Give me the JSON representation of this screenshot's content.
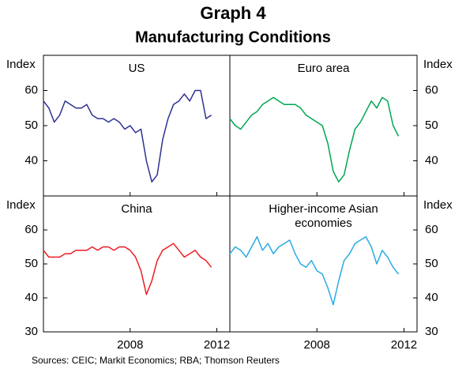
{
  "title": "Graph 4",
  "subtitle": "Manufacturing Conditions",
  "source": "Sources: CEIC; Markit Economics; RBA; Thomson Reuters",
  "chart_data": [
    {
      "type": "line",
      "title": "US",
      "ylabel": "Index",
      "color": "#2e3192",
      "x": [
        2004,
        2004.25,
        2004.5,
        2004.75,
        2005,
        2005.25,
        2005.5,
        2005.75,
        2006,
        2006.25,
        2006.5,
        2006.75,
        2007,
        2007.25,
        2007.5,
        2007.75,
        2008,
        2008.25,
        2008.5,
        2008.75,
        2009,
        2009.25,
        2009.5,
        2009.75,
        2010,
        2010.25,
        2010.5,
        2010.75,
        2011,
        2011.25,
        2011.5,
        2011.75
      ],
      "values": [
        57,
        55,
        51,
        53,
        57,
        56,
        55,
        55,
        56,
        53,
        52,
        52,
        51,
        52,
        51,
        49,
        50,
        48,
        49,
        40,
        34,
        36,
        46,
        52,
        56,
        57,
        59,
        57,
        60,
        60,
        52,
        53
      ],
      "xlim": [
        2004,
        2012.6
      ],
      "xticks": [
        2008,
        2012
      ],
      "ylim": [
        30,
        70
      ],
      "yticks": [
        40,
        50,
        60
      ]
    },
    {
      "type": "line",
      "title": "Euro area",
      "ylabel": "Index",
      "color": "#00a651",
      "x": [
        2004,
        2004.25,
        2004.5,
        2004.75,
        2005,
        2005.25,
        2005.5,
        2005.75,
        2006,
        2006.25,
        2006.5,
        2006.75,
        2007,
        2007.25,
        2007.5,
        2007.75,
        2008,
        2008.25,
        2008.5,
        2008.75,
        2009,
        2009.25,
        2009.5,
        2009.75,
        2010,
        2010.25,
        2010.5,
        2010.75,
        2011,
        2011.25,
        2011.5,
        2011.75
      ],
      "values": [
        52,
        50,
        49,
        51,
        53,
        54,
        56,
        57,
        58,
        57,
        56,
        56,
        56,
        55,
        53,
        52,
        51,
        50,
        45,
        37,
        34,
        36,
        43,
        49,
        51,
        54,
        57,
        55,
        58,
        57,
        50,
        47
      ],
      "xlim": [
        2004,
        2012.6
      ],
      "xticks": [
        2008,
        2012
      ],
      "ylim": [
        30,
        70
      ],
      "yticks": [
        40,
        50,
        60
      ]
    },
    {
      "type": "line",
      "title": "China",
      "ylabel": "Index",
      "color": "#ed1c24",
      "x": [
        2004,
        2004.25,
        2004.5,
        2004.75,
        2005,
        2005.25,
        2005.5,
        2005.75,
        2006,
        2006.25,
        2006.5,
        2006.75,
        2007,
        2007.25,
        2007.5,
        2007.75,
        2008,
        2008.25,
        2008.5,
        2008.75,
        2009,
        2009.25,
        2009.5,
        2009.75,
        2010,
        2010.25,
        2010.5,
        2010.75,
        2011,
        2011.25,
        2011.5,
        2011.75
      ],
      "values": [
        54,
        52,
        52,
        52,
        53,
        53,
        54,
        54,
        54,
        55,
        54,
        55,
        55,
        54,
        55,
        55,
        54,
        52,
        48,
        41,
        45,
        51,
        54,
        55,
        56,
        54,
        52,
        53,
        54,
        52,
        51,
        49
      ],
      "xlim": [
        2004,
        2012.6
      ],
      "xticks": [
        2008,
        2012
      ],
      "ylim": [
        30,
        70
      ],
      "yticks": [
        30,
        40,
        50,
        60
      ]
    },
    {
      "type": "line",
      "title": [
        "Higher-income Asian",
        "economies"
      ],
      "ylabel": "Index",
      "color": "#29abe2",
      "x": [
        2004,
        2004.25,
        2004.5,
        2004.75,
        2005,
        2005.25,
        2005.5,
        2005.75,
        2006,
        2006.25,
        2006.5,
        2006.75,
        2007,
        2007.25,
        2007.5,
        2007.75,
        2008,
        2008.25,
        2008.5,
        2008.75,
        2009,
        2009.25,
        2009.5,
        2009.75,
        2010,
        2010.25,
        2010.5,
        2010.75,
        2011,
        2011.25,
        2011.5,
        2011.75
      ],
      "values": [
        53,
        55,
        54,
        52,
        55,
        58,
        54,
        56,
        53,
        55,
        56,
        57,
        53,
        50,
        49,
        51,
        48,
        47,
        43,
        38,
        45,
        51,
        53,
        56,
        57,
        58,
        55,
        50,
        54,
        52,
        49,
        47
      ],
      "xlim": [
        2004,
        2012.6
      ],
      "xticks": [
        2008,
        2012
      ],
      "ylim": [
        30,
        70
      ],
      "yticks": [
        30,
        40,
        50,
        60
      ]
    }
  ]
}
